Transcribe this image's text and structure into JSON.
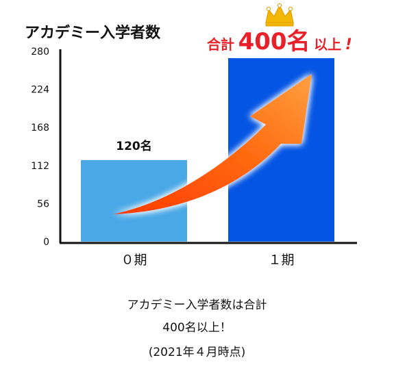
{
  "chart_data": {
    "type": "bar",
    "title": "アカデミー入学者数",
    "categories": [
      "０期",
      "１期"
    ],
    "values": [
      120,
      270
    ],
    "data_labels": [
      "120名",
      ""
    ],
    "ylim": [
      0,
      280
    ],
    "yticks": [
      0,
      56,
      112,
      168,
      224,
      280
    ],
    "bar_colors": [
      "#4aa8e6",
      "#0455e3"
    ],
    "axis_color": "#111111",
    "grid": false,
    "annotation": {
      "text_prefix": "合計",
      "text_big": "400名",
      "text_suffix": "以上",
      "text_mark": "!",
      "color": "#e8202a",
      "crown_color": "#f2b705",
      "arrow_color": "#ff6a10"
    }
  },
  "captions": {
    "line1": "アカデミー入学者数は合計",
    "line2": "400名以上！",
    "line3": "(2021年４月時点)"
  }
}
